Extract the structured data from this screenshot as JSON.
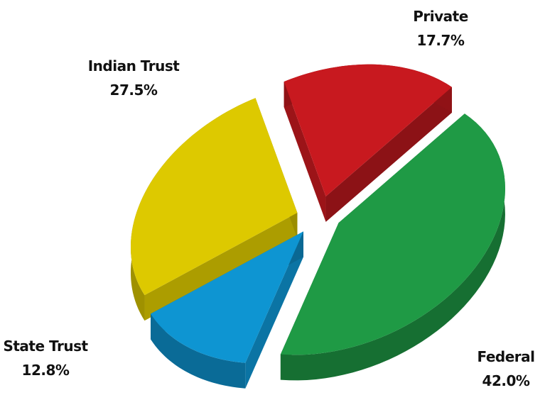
{
  "chart_data": {
    "type": "pie",
    "style": "3d-exploded",
    "slices": [
      {
        "label": "Private",
        "percent_text": "17.7%",
        "value": 17.7,
        "color": "#c8191f"
      },
      {
        "label": "Federal",
        "percent_text": "42.0%",
        "value": 42.0,
        "color": "#1f9a45"
      },
      {
        "label": "State Trust",
        "percent_text": "12.8%",
        "value": 12.8,
        "color": "#0e95d2"
      },
      {
        "label": "Indian Trust",
        "percent_text": "27.5%",
        "value": 27.5,
        "color": "#ddc900"
      }
    ],
    "legend": "none",
    "labels": "outside-slices"
  }
}
